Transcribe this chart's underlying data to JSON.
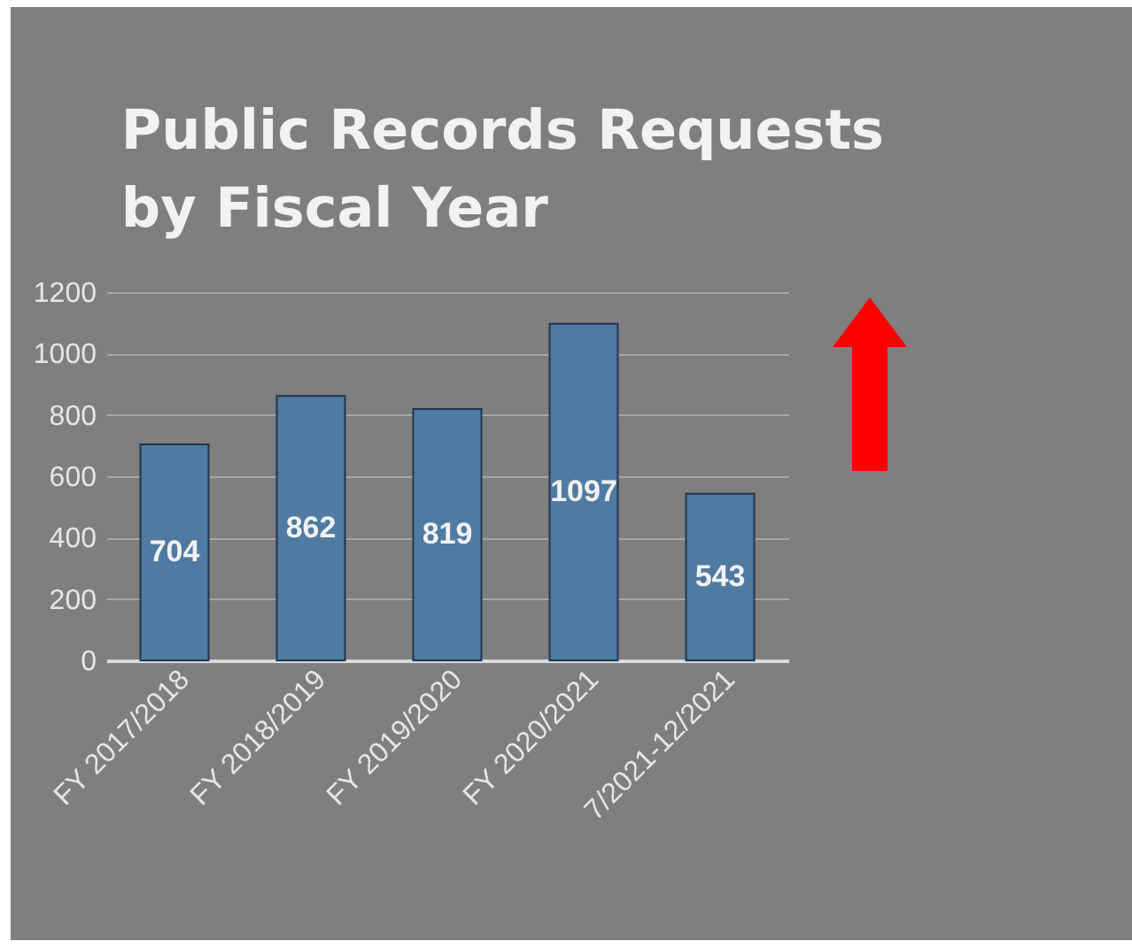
{
  "chart_data": {
    "type": "bar",
    "title": "Public Records Requests by Fiscal Year",
    "categories": [
      "FY 2017/2018",
      "FY 2018/2019",
      "FY 2019/2020",
      "FY 2020/2021",
      "7/2021-12/2021"
    ],
    "values": [
      704,
      862,
      819,
      1097,
      543
    ],
    "color": "#4f7ba3",
    "ylim": [
      0,
      1200
    ],
    "yticks": [
      0,
      200,
      400,
      600,
      800,
      1000,
      1200
    ],
    "grid": "y",
    "data_labels": true
  }
}
